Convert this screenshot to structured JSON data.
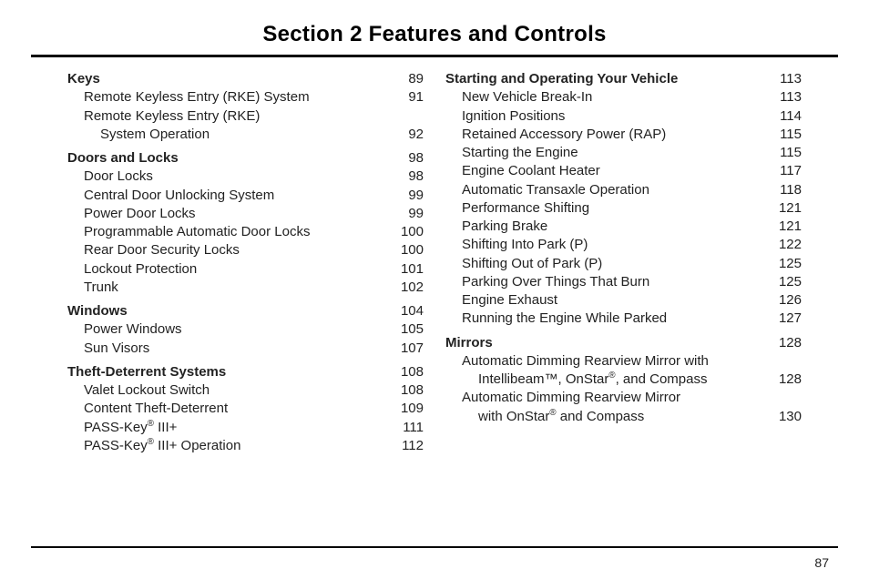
{
  "section_title": "Section  2     Features and Controls",
  "page_number": "87",
  "left": {
    "groups": [
      {
        "heading": {
          "label": "Keys",
          "page": "89",
          "bold": true
        },
        "items": [
          {
            "label": "Remote Keyless Entry (RKE) System",
            "page": "91",
            "indent": 1
          },
          {
            "label": "Remote Keyless Entry (RKE)",
            "page": null,
            "indent": 1
          },
          {
            "label": "System Operation",
            "page": "92",
            "indent": 2
          }
        ]
      },
      {
        "heading": {
          "label": "Doors and Locks",
          "page": "98",
          "bold": true
        },
        "items": [
          {
            "label": "Door Locks",
            "page": "98",
            "indent": 1
          },
          {
            "label": "Central Door Unlocking System",
            "page": "99",
            "indent": 1
          },
          {
            "label": "Power Door Locks",
            "page": "99",
            "indent": 1
          },
          {
            "label": "Programmable Automatic Door Locks",
            "page": "100",
            "indent": 1
          },
          {
            "label": "Rear Door Security Locks",
            "page": "100",
            "indent": 1
          },
          {
            "label": "Lockout Protection",
            "page": "101",
            "indent": 1
          },
          {
            "label": "Trunk",
            "page": "102",
            "indent": 1
          }
        ]
      },
      {
        "heading": {
          "label": "Windows",
          "page": "104",
          "bold": true
        },
        "items": [
          {
            "label": "Power Windows",
            "page": "105",
            "indent": 1
          },
          {
            "label": "Sun Visors",
            "page": "107",
            "indent": 1
          }
        ]
      },
      {
        "heading": {
          "label": "Theft-Deterrent Systems",
          "page": "108",
          "bold": true
        },
        "items": [
          {
            "label": "Valet Lockout Switch",
            "page": "108",
            "indent": 1
          },
          {
            "label": "Content Theft-Deterrent",
            "page": "109",
            "indent": 1
          },
          {
            "label_html": "PASS-Key<sup>®</sup> III+",
            "page": "111",
            "indent": 1
          },
          {
            "label_html": "PASS-Key<sup>®</sup> III+ Operation",
            "page": "112",
            "indent": 1
          }
        ]
      }
    ]
  },
  "right": {
    "groups": [
      {
        "heading": {
          "label": "Starting and Operating Your Vehicle",
          "page": "113",
          "bold": true
        },
        "items": [
          {
            "label": "New Vehicle Break-In",
            "page": "113",
            "indent": 1
          },
          {
            "label": "Ignition Positions",
            "page": "114",
            "indent": 1
          },
          {
            "label": "Retained Accessory Power (RAP)",
            "page": "115",
            "indent": 1
          },
          {
            "label": "Starting the Engine",
            "page": "115",
            "indent": 1
          },
          {
            "label": "Engine Coolant Heater",
            "page": "117",
            "indent": 1
          },
          {
            "label": "Automatic Transaxle Operation",
            "page": "118",
            "indent": 1
          },
          {
            "label": "Performance Shifting",
            "page": "121",
            "indent": 1
          },
          {
            "label": "Parking Brake",
            "page": "121",
            "indent": 1
          },
          {
            "label": "Shifting Into Park (P)",
            "page": "122",
            "indent": 1
          },
          {
            "label": "Shifting Out of Park (P)",
            "page": "125",
            "indent": 1
          },
          {
            "label": "Parking Over Things That Burn",
            "page": "125",
            "indent": 1
          },
          {
            "label": "Engine Exhaust",
            "page": "126",
            "indent": 1
          },
          {
            "label": "Running the Engine While Parked",
            "page": "127",
            "indent": 1
          }
        ]
      },
      {
        "heading": {
          "label": "Mirrors",
          "page": "128",
          "bold": true
        },
        "items": [
          {
            "label": "Automatic Dimming Rearview Mirror with",
            "page": null,
            "indent": 1
          },
          {
            "label_html": "Intellibeam™, OnStar<sup>®</sup>, and Compass",
            "page": "128",
            "indent": 2
          },
          {
            "label": "Automatic Dimming Rearview Mirror",
            "page": null,
            "indent": 1
          },
          {
            "label_html": "with OnStar<sup>®</sup> and Compass",
            "page": "130",
            "indent": 2
          }
        ]
      }
    ]
  }
}
